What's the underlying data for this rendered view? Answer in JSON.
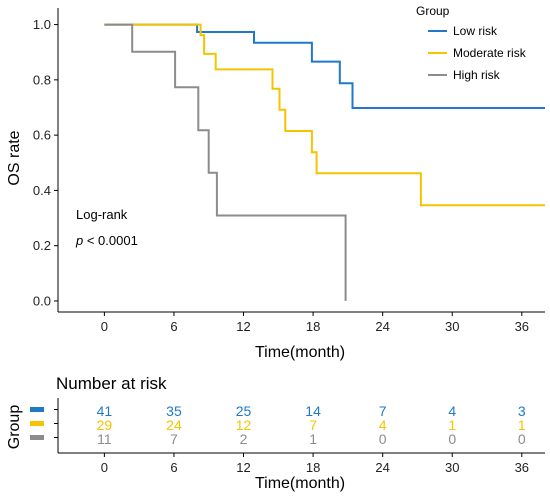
{
  "colors": {
    "low": "#1f78c8",
    "moderate": "#f5c400",
    "high": "#8c8c8c",
    "axis": "#000000"
  },
  "chart_data": [
    {
      "type": "line",
      "subtype": "kaplan-meier step",
      "xlabel": "Time(month)",
      "ylabel": "OS rate",
      "xlim": [
        -4,
        38
      ],
      "ylim": [
        -0.04,
        1.06
      ],
      "xticks": [
        0,
        6,
        12,
        18,
        24,
        30,
        36
      ],
      "yticks": [
        "0.0",
        "0.2",
        "0.4",
        "0.6",
        "0.8",
        "1.0"
      ],
      "legend": {
        "title": "Group",
        "placement": "top-right",
        "entries": [
          "Low risk",
          "Moderate risk",
          "High risk"
        ]
      },
      "annotation": {
        "line1": "Log-rank",
        "p_symbol": "p",
        "p_rest": " < 0.0001"
      },
      "series": [
        {
          "name": "Low risk",
          "color_key": "low",
          "points": [
            [
              0,
              1.0
            ],
            [
              8,
              1.0
            ],
            [
              8,
              0.973
            ],
            [
              12.9,
              0.973
            ],
            [
              12.9,
              0.934
            ],
            [
              17.9,
              0.934
            ],
            [
              17.9,
              0.866
            ],
            [
              20.3,
              0.866
            ],
            [
              20.3,
              0.788
            ],
            [
              21.4,
              0.788
            ],
            [
              21.4,
              0.698
            ],
            [
              38,
              0.698
            ]
          ]
        },
        {
          "name": "Moderate risk",
          "color_key": "moderate",
          "points": [
            [
              0,
              1.0
            ],
            [
              8.3,
              1.0
            ],
            [
              8.3,
              0.962
            ],
            [
              8.6,
              0.962
            ],
            [
              8.6,
              0.894
            ],
            [
              9.6,
              0.894
            ],
            [
              9.6,
              0.838
            ],
            [
              14.5,
              0.838
            ],
            [
              14.5,
              0.768
            ],
            [
              15.1,
              0.768
            ],
            [
              15.1,
              0.692
            ],
            [
              15.6,
              0.692
            ],
            [
              15.6,
              0.615
            ],
            [
              17.9,
              0.615
            ],
            [
              17.9,
              0.538
            ],
            [
              18.3,
              0.538
            ],
            [
              18.3,
              0.462
            ],
            [
              27.3,
              0.462
            ],
            [
              27.3,
              0.346
            ],
            [
              38,
              0.346
            ]
          ]
        },
        {
          "name": "High risk",
          "color_key": "high",
          "points": [
            [
              0,
              1.0
            ],
            [
              2.4,
              1.0
            ],
            [
              2.4,
              0.902
            ],
            [
              6.1,
              0.902
            ],
            [
              6.1,
              0.773
            ],
            [
              8.1,
              0.773
            ],
            [
              8.1,
              0.618
            ],
            [
              9.0,
              0.618
            ],
            [
              9.0,
              0.464
            ],
            [
              9.7,
              0.464
            ],
            [
              9.7,
              0.309
            ],
            [
              20.8,
              0.309
            ],
            [
              20.8,
              0.0
            ]
          ]
        }
      ]
    },
    {
      "type": "table",
      "title": "Number at risk",
      "xlabel": "Time(month)",
      "ylabel": "Group",
      "xticks": [
        0,
        6,
        12,
        18,
        24,
        30,
        36
      ],
      "rows": [
        {
          "color_key": "low",
          "values": [
            41,
            35,
            25,
            14,
            7,
            4,
            3
          ]
        },
        {
          "color_key": "moderate",
          "values": [
            29,
            24,
            12,
            7,
            4,
            1,
            1
          ]
        },
        {
          "color_key": "high",
          "values": [
            11,
            7,
            2,
            1,
            0,
            0,
            0
          ]
        }
      ]
    }
  ]
}
